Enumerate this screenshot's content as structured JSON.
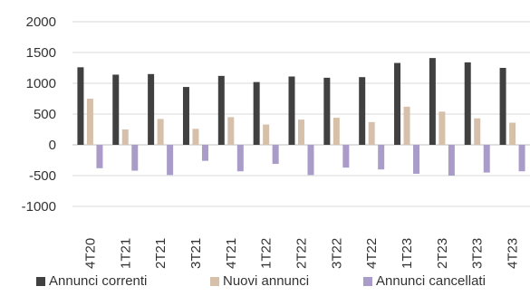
{
  "chart_data": {
    "type": "bar",
    "categories": [
      "4T20",
      "1T21",
      "2T21",
      "3T21",
      "4T21",
      "1T22",
      "2T22",
      "3T22",
      "4T22",
      "1T23",
      "2T23",
      "3T23",
      "4T23"
    ],
    "series": [
      {
        "name": "Annunci correnti",
        "color": "#404040",
        "values": [
          1260,
          1140,
          1150,
          940,
          1120,
          1020,
          1110,
          1090,
          1100,
          1330,
          1410,
          1340,
          1250
        ]
      },
      {
        "name": "Nuovi annunci",
        "color": "#d6c0aa",
        "values": [
          750,
          250,
          420,
          260,
          450,
          330,
          410,
          440,
          370,
          620,
          540,
          430,
          360
        ]
      },
      {
        "name": "Annunci cancellati",
        "color": "#a99cc9",
        "values": [
          -380,
          -420,
          -490,
          -260,
          -430,
          -310,
          -490,
          -370,
          -400,
          -470,
          -500,
          -450,
          -430
        ]
      }
    ],
    "yticks": [
      "2000",
      "1500",
      "1000",
      "500",
      "0",
      "-500",
      "-1000"
    ],
    "ylim": [
      -1000,
      2000
    ],
    "grid": true,
    "legend_position": "bottom"
  }
}
